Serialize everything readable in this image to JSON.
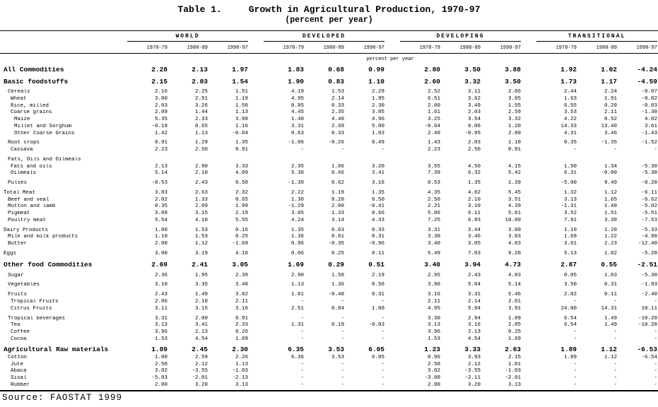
{
  "header": {
    "table_label": "Table 1.",
    "title": "Growth in Agricultural Production, 1970-97",
    "subtitle": "(percent per year)"
  },
  "footer": {
    "source": "Source: FAOSTAT 1999"
  },
  "table": {
    "groups": [
      "WORLD",
      "DEVELOPED",
      "DEVELOPING",
      "TRANSITIONAL"
    ],
    "periods": [
      "1970-79",
      "1980-89",
      "1990-97"
    ],
    "unit_note": "percent per year",
    "rows": [
      {
        "label": "All Commodities",
        "indent": 0,
        "bold": true,
        "values": [
          "2.28",
          "2.13",
          "1.97",
          "1.83",
          "0.68",
          "0.99",
          "2.80",
          "3.50",
          "3.88",
          "1.92",
          "1.02",
          "-4.24"
        ]
      },
      {
        "spacer": true
      },
      {
        "label": "Basic foodstuffs",
        "indent": 0,
        "bold": true,
        "values": [
          "2.15",
          "2.03",
          "1.54",
          "1.90",
          "0.83",
          "1.10",
          "2.60",
          "3.32",
          "3.50",
          "1.73",
          "1.17",
          "-4.59"
        ]
      },
      {
        "spacer": true
      },
      {
        "label": "Cereals",
        "indent": 1,
        "bold": false,
        "values": [
          "2.16",
          "2.25",
          "1.51",
          "4.19",
          "1.53",
          "2.29",
          "2.52",
          "3.11",
          "2.06",
          "2.44",
          "2.24",
          "-0.07"
        ]
      },
      {
        "label": "Wheat",
        "indent": 2,
        "bold": false,
        "values": [
          "3.00",
          "2.51",
          "1.19",
          "4.95",
          "2.14",
          "1.95",
          "6.51",
          "3.62",
          "3.05",
          "1.63",
          "1.91",
          "-0.02"
        ]
      },
      {
        "label": "Rice, milled",
        "indent": 2,
        "bold": false,
        "values": [
          "2.03",
          "3.26",
          "1.50",
          "0.85",
          "0.33",
          "2.30",
          "2.00",
          "3.49",
          "1.55",
          "6.55",
          "0.20",
          "-0.03"
        ]
      },
      {
        "label": "Coarse grains",
        "indent": 2,
        "bold": false,
        "values": [
          "2.09",
          "1.44",
          "1.13",
          "4.45",
          "2.35",
          "3.05",
          "1.61",
          "2.03",
          "2.59",
          "3.53",
          "2.11",
          "-1.30"
        ]
      },
      {
        "label": "Maize",
        "indent": 3,
        "bold": false,
        "values": [
          "5.35",
          "2.33",
          "3.00",
          "1.40",
          "4.40",
          "4.96",
          "3.25",
          "3.54",
          "3.32",
          "4.22",
          "0.52",
          "4.02"
        ]
      },
      {
        "label": "Millet and Sorghum",
        "indent": 3,
        "bold": false,
        "values": [
          "-0.19",
          "0.65",
          "1.16",
          "3.31",
          "2.69",
          "5.00",
          "-0.64",
          "0.06",
          "1.20",
          "14.33",
          "13.40",
          "3.61"
        ]
      },
      {
        "label": "Other Coarse Grains",
        "indent": 3,
        "bold": false,
        "values": [
          "1.42",
          "1.13",
          "-0.04",
          "0.63",
          "0.33",
          "1.03",
          "2.40",
          "-0.95",
          "2.00",
          "4.31",
          "3.46",
          "-1.43"
        ]
      },
      {
        "spacer": true
      },
      {
        "label": "Root crops",
        "indent": 1,
        "bold": false,
        "values": [
          "0.91",
          "1.29",
          "1.35",
          "-1.06",
          "-0.26",
          "0.49",
          "1.43",
          "2.03",
          "1.10",
          "0.35",
          "-1.35",
          "-1.52"
        ]
      },
      {
        "label": "Cassava",
        "indent": 2,
        "bold": false,
        "values": [
          "2.23",
          "2.50",
          "0.91",
          "-",
          "-",
          "-",
          "2.23",
          "2.50",
          "0.91",
          "-",
          "-",
          "-"
        ]
      },
      {
        "spacer": true
      },
      {
        "label": "Fats, Oils and Oilmeals",
        "indent": 1,
        "bold": false,
        "values": [
          "",
          "",
          "",
          "",
          "",
          "",
          "",
          "",
          "",
          "",
          "",
          ""
        ]
      },
      {
        "label": "Fats and oils",
        "indent": 2,
        "bold": false,
        "values": [
          "2.13",
          "2.90",
          "3.33",
          "2.35",
          "1.06",
          "3.20",
          "3.55",
          "4.50",
          "4.15",
          "1.50",
          "1.34",
          "-5.30"
        ]
      },
      {
        "label": "Oilmeals",
        "indent": 2,
        "bold": false,
        "values": [
          "5.14",
          "2.10",
          "4.09",
          "5.30",
          "0.66",
          "3.41",
          "7.39",
          "6.32",
          "5.42",
          "6.31",
          "-0.00",
          "-5.30"
        ]
      },
      {
        "spacer": true
      },
      {
        "label": "Pulses",
        "indent": 1,
        "bold": false,
        "values": [
          "-0.53",
          "2.43",
          "0.50",
          "-1.30",
          "0.62",
          "3.16",
          "0.53",
          "1.35",
          "1.39",
          "-5.00",
          "9.49",
          "-0.20"
        ]
      },
      {
        "spacer": true
      },
      {
        "label": "Total Meat",
        "indent": 0,
        "bold": false,
        "values": [
          "3.03",
          "2.63",
          "2.32",
          "2.22",
          "1.19",
          "1.35",
          "4.35",
          "4.02",
          "5.45",
          "1.32",
          "1.12",
          "-6.11"
        ]
      },
      {
        "label": "Beef and veal",
        "indent": 1,
        "bold": false,
        "values": [
          "2.02",
          "1.33",
          "0.65",
          "1.30",
          "0.20",
          "0.50",
          "2.50",
          "2.10",
          "3.51",
          "3.13",
          "1.65",
          "-6.62"
        ]
      },
      {
        "label": "Mutton and lamb",
        "indent": 1,
        "bold": false,
        "values": [
          "0.35",
          "2.09",
          "1.99",
          "-1.29",
          "2.00",
          "-0.41",
          "2.21",
          "3.10",
          "4.39",
          "-1.31",
          "1.40",
          "-5.02"
        ]
      },
      {
        "label": "Pigmeat",
        "indent": 1,
        "bold": false,
        "values": [
          "3.09",
          "3.15",
          "2.19",
          "3.05",
          "1.33",
          "0.66",
          "5.06",
          "6.11",
          "5.61",
          "3.52",
          "1.51",
          "-5.51"
        ]
      },
      {
        "label": "Poultry meat",
        "indent": 1,
        "bold": false,
        "values": [
          "5.54",
          "4.10",
          "5.55",
          "4.24",
          "3.14",
          "4.33",
          "7.25",
          "6.93",
          "10.00",
          "7.91",
          "3.30",
          "-7.53"
        ]
      },
      {
        "spacer": true
      },
      {
        "label": "Dairy Products",
        "indent": 0,
        "bold": false,
        "values": [
          "1.00",
          "1.53",
          "0.16",
          "1.35",
          "0.63",
          "0.33",
          "3.31",
          "3.44",
          "3.00",
          "1.10",
          "1.20",
          "-5.33"
        ]
      },
      {
        "label": "Milk and milk products",
        "indent": 1,
        "bold": false,
        "values": [
          "1.10",
          "1.53",
          "0.25",
          "1.36",
          "0.61",
          "0.31",
          "3.30",
          "3.46",
          "3.03",
          "1.69",
          "1.22",
          "-4.90"
        ]
      },
      {
        "label": "Butter",
        "indent": 1,
        "bold": false,
        "values": [
          "2.00",
          "1.12",
          "-1.69",
          "0.96",
          "-0.35",
          "-0.96",
          "3.40",
          "3.05",
          "4.03",
          "3.61",
          "2.23",
          "-12.40"
        ]
      },
      {
        "spacer": true
      },
      {
        "label": "Eggs",
        "indent": 0,
        "bold": false,
        "values": [
          "3.00",
          "3.19",
          "4.10",
          "0.06",
          "0.25",
          "0.11",
          "5.49",
          "7.03",
          "9.20",
          "5.13",
          "1.02",
          "-5.20"
        ]
      },
      {
        "spacer": true
      },
      {
        "label": "Other food Commodities",
        "indent": 0,
        "bold": true,
        "values": [
          "2.69",
          "2.41",
          "3.05",
          "1.69",
          "0.29",
          "0.51",
          "3.40",
          "3.94",
          "4.73",
          "2.87",
          "0.55",
          "-2.51"
        ]
      },
      {
        "spacer": true
      },
      {
        "label": "Sugar",
        "indent": 1,
        "bold": false,
        "values": [
          "2.36",
          "1.95",
          "2.39",
          "2.90",
          "1.50",
          "2.19",
          "2.95",
          "2.43",
          "4.03",
          "0.05",
          "1.03",
          "-5.30"
        ]
      },
      {
        "spacer": true
      },
      {
        "label": "Vegetables",
        "indent": 1,
        "bold": false,
        "values": [
          "3.10",
          "3.35",
          "3.40",
          "1.13",
          "1.36",
          "0.56",
          "3.96",
          "5.04",
          "5.14",
          "3.50",
          "0.31",
          "-1.93"
        ]
      },
      {
        "spacer": true
      },
      {
        "label": "Fruits",
        "indent": 1,
        "bold": false,
        "values": [
          "2.43",
          "1.49",
          "3.02",
          "1.01",
          "-0.40",
          "0.31",
          "3.16",
          "3.31",
          "5.46",
          "2.02",
          "0.11",
          "-2.40"
        ]
      },
      {
        "label": "Tropical Fruits",
        "indent": 2,
        "bold": false,
        "values": [
          "2.06",
          "2.10",
          "2.11",
          "-",
          "-",
          "-",
          "2.11",
          "2.14",
          "2.01",
          "-",
          "-",
          "-"
        ]
      },
      {
        "label": "Citrus Fruits",
        "indent": 2,
        "bold": false,
        "values": [
          "3.11",
          "3.15",
          "3.16",
          "2.51",
          "0.94",
          "1.00",
          "4.95",
          "5.94",
          "3.91",
          "24.00",
          "14.31",
          "10.11"
        ]
      },
      {
        "spacer": true
      },
      {
        "label": "Tropical beverages",
        "indent": 1,
        "bold": false,
        "values": [
          "3.31",
          "2.00",
          "0.91",
          "-",
          "-",
          "-",
          "3.30",
          "2.94",
          "1.09",
          "6.54",
          "1.49",
          "-10.20"
        ]
      },
      {
        "label": "Tea",
        "indent": 2,
        "bold": false,
        "values": [
          "3.13",
          "3.41",
          "2.33",
          "1.31",
          "0.19",
          "-0.03",
          "3.13",
          "3.16",
          "2.05",
          "6.54",
          "1.49",
          "-10.20"
        ]
      },
      {
        "label": "Coffee",
        "indent": 2,
        "bold": false,
        "values": [
          "3.96",
          "2.13",
          "0.26",
          "-",
          "-",
          "-",
          "3.96",
          "2.13",
          "0.25",
          "-",
          "-",
          "-"
        ]
      },
      {
        "label": "Cocoa",
        "indent": 2,
        "bold": false,
        "values": [
          "1.53",
          "4.54",
          "1.69",
          "-",
          "-",
          "-",
          "1.53",
          "4.54",
          "1.69",
          "-",
          "-",
          "-"
        ]
      },
      {
        "spacer": true
      },
      {
        "label": "Agricultural Raw materials",
        "indent": 0,
        "bold": true,
        "values": [
          "1.89",
          "2.45",
          "2.30",
          "6.35",
          "3.53",
          "6.05",
          "1.23",
          "3.33",
          "2.63",
          "1.89",
          "1.12",
          "-6.53"
        ]
      },
      {
        "label": "Cotton",
        "indent": 1,
        "bold": false,
        "values": [
          "1.00",
          "2.59",
          "2.26",
          "6.36",
          "3.53",
          "6.05",
          "0.96",
          "3.93",
          "2.15",
          "1.89",
          "1.12",
          "-6.54"
        ]
      },
      {
        "label": "Jute",
        "indent": 2,
        "bold": false,
        "values": [
          "2.50",
          "2.12",
          "1.13",
          "-",
          "-",
          "-",
          "2.50",
          "2.12",
          "1.01",
          "-",
          "-",
          "-"
        ]
      },
      {
        "label": "Abaca",
        "indent": 2,
        "bold": false,
        "values": [
          "3.02",
          "-3.55",
          "-1.03",
          "-",
          "-",
          "-",
          "3.02",
          "-3.55",
          "-1.03",
          "-",
          "-",
          "-"
        ]
      },
      {
        "label": "Sisal",
        "indent": 2,
        "bold": false,
        "values": [
          "-5.03",
          "-2.01",
          "-2.13",
          "-",
          "-",
          "-",
          "-3.00",
          "-2.11",
          "-2.01",
          "-",
          "-",
          "-"
        ]
      },
      {
        "label": "Rubber",
        "indent": 2,
        "bold": false,
        "values": [
          "2.00",
          "3.20",
          "3.13",
          "-",
          "-",
          "-",
          "2.00",
          "3.20",
          "3.13",
          "-",
          "-",
          "-"
        ]
      }
    ]
  }
}
